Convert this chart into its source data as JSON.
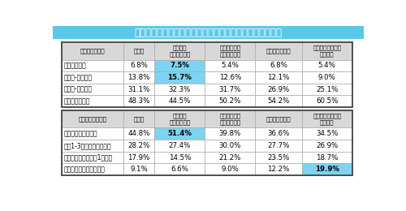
{
  "title": "居住市町村への今後の居住意向とコミュニティ指標の関連",
  "title_bg": "#5bc8e8",
  "title_color": "#ffffff",
  "header_bg": "#d8d8d8",
  "header_color": "#000000",
  "row_bg": "#ffffff",
  "highlight_blue": "#7dd4f0",
  "border_color": "#aaaaaa",
  "outer_border_color": "#444444",
  "col_headers": [
    "",
    "総　計",
    "継続して\n住み続けたい",
    "条件が合えば\n住み続けたい",
    "まだわからない",
    "住み続けたいとは\n思わない"
  ],
  "section1_header": "集会所利用頻度",
  "section2_header": "団地内の会話頻度",
  "table1_rows": [
    [
      "月に６回以上",
      "6.8%",
      "7.5%",
      "5.4%",
      "6.8%",
      "5.4%"
    ],
    [
      "月に３-５回程度",
      "13.8%",
      "15.7%",
      "12.6%",
      "12.1%",
      "9.0%"
    ],
    [
      "月に１-２回程度",
      "31.1%",
      "32.3%",
      "31.7%",
      "26.9%",
      "25.1%"
    ],
    [
      "利用していない",
      "48.3%",
      "44.5%",
      "50.2%",
      "54.2%",
      "60.5%"
    ]
  ],
  "table1_highlights": [
    [
      0,
      2
    ],
    [
      1,
      2
    ]
  ],
  "table2_rows": [
    [
      "ほぼ毎日会話をする",
      "44.8%",
      "51.4%",
      "39.8%",
      "36.6%",
      "34.5%"
    ],
    [
      "週に1-3日程度会話をする",
      "28.2%",
      "27.4%",
      "30.0%",
      "27.7%",
      "26.9%"
    ],
    [
      "会話をするのは週に1日未満",
      "17.9%",
      "14.5%",
      "21.2%",
      "23.5%",
      "18.7%"
    ],
    [
      "団地内では会話はしない",
      "9.1%",
      "6.6%",
      "9.0%",
      "12.2%",
      "19.9%"
    ]
  ],
  "table2_highlights": [
    [
      0,
      2
    ],
    [
      3,
      5
    ]
  ]
}
